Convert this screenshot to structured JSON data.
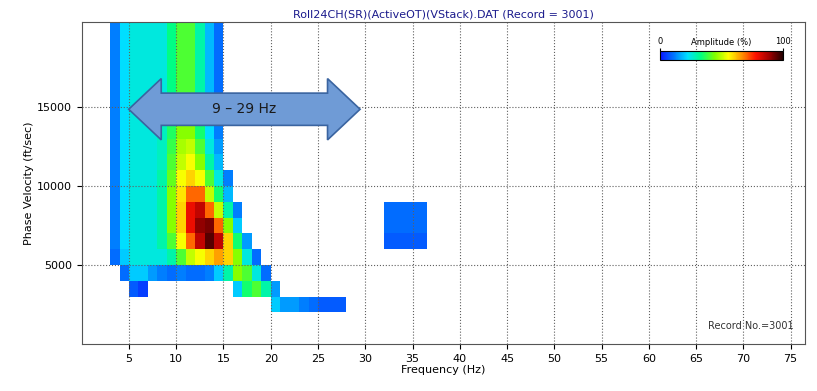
{
  "chart_data": {
    "type": "heatmap",
    "title": "Roll24CH(SR)(ActiveOT)(VStack).DAT (Record = 3001)",
    "x_label": "Frequency (Hz)",
    "y_label": "Phase Velocity (ft/sec)",
    "xlim": [
      0,
      76.5
    ],
    "ylim": [
      0,
      20400
    ],
    "xticks": [
      5,
      10,
      15,
      20,
      25,
      30,
      35,
      40,
      45,
      50,
      55,
      60,
      65,
      70,
      75
    ],
    "yticks": [
      5000,
      10000,
      15000
    ],
    "grid": true,
    "x_edges": [
      3,
      4,
      5,
      6,
      7,
      8,
      9,
      10,
      11,
      12,
      13,
      14,
      15,
      16,
      17,
      18,
      19,
      20,
      21,
      22,
      23,
      24,
      25,
      28,
      32,
      36.5
    ],
    "y_edges": [
      0,
      1000,
      2000,
      3000,
      4000,
      5000,
      6000,
      7000,
      8000,
      9000,
      10000,
      11000,
      12000,
      13000,
      14000,
      15000,
      16000,
      17000,
      18000,
      19000,
      20000,
      21000
    ],
    "cells": [
      [
        0,
        0,
        0,
        0,
        0,
        0,
        0,
        0,
        0,
        0,
        0,
        0,
        0,
        0,
        0,
        0,
        0,
        0,
        0,
        0,
        0,
        0,
        0,
        0,
        0
      ],
      [
        0,
        0,
        0,
        0,
        0,
        0,
        0,
        0,
        0,
        0,
        0,
        0,
        0,
        0,
        0,
        0,
        0,
        0,
        0,
        0,
        0,
        0,
        0,
        0,
        0
      ],
      [
        0,
        0,
        0,
        0,
        0,
        0,
        0,
        0,
        0,
        0,
        0,
        0,
        0,
        0,
        0,
        0,
        0,
        20,
        15,
        15,
        12,
        10,
        8,
        0,
        0
      ],
      [
        0,
        0,
        8,
        5,
        0,
        0,
        0,
        0,
        0,
        0,
        0,
        0,
        0,
        20,
        35,
        40,
        30,
        15,
        0,
        0,
        0,
        0,
        0,
        0,
        0
      ],
      [
        0,
        10,
        20,
        20,
        15,
        12,
        10,
        12,
        10,
        10,
        12,
        20,
        30,
        45,
        40,
        25,
        10,
        0,
        0,
        0,
        0,
        0,
        0,
        0,
        0
      ],
      [
        10,
        20,
        25,
        25,
        25,
        25,
        30,
        40,
        50,
        55,
        60,
        65,
        60,
        45,
        25,
        10,
        0,
        0,
        0,
        0,
        0,
        0,
        0,
        0,
        0
      ],
      [
        12,
        22,
        25,
        25,
        25,
        30,
        40,
        55,
        70,
        85,
        95,
        85,
        60,
        35,
        15,
        0,
        0,
        0,
        0,
        0,
        0,
        0,
        0,
        0,
        8
      ],
      [
        12,
        22,
        25,
        25,
        25,
        30,
        45,
        60,
        80,
        90,
        92,
        70,
        45,
        20,
        0,
        0,
        0,
        0,
        0,
        0,
        0,
        0,
        0,
        0,
        10
      ],
      [
        12,
        22,
        25,
        25,
        25,
        30,
        45,
        60,
        80,
        85,
        70,
        50,
        30,
        12,
        0,
        0,
        0,
        0,
        0,
        0,
        0,
        0,
        0,
        0,
        10
      ],
      [
        12,
        22,
        25,
        25,
        25,
        30,
        45,
        58,
        70,
        70,
        50,
        35,
        18,
        0,
        0,
        0,
        0,
        0,
        0,
        0,
        0,
        0,
        0,
        0,
        0
      ],
      [
        12,
        22,
        25,
        25,
        25,
        30,
        42,
        55,
        60,
        55,
        40,
        25,
        12,
        0,
        0,
        0,
        0,
        0,
        0,
        0,
        0,
        0,
        0,
        0,
        0
      ],
      [
        12,
        22,
        25,
        25,
        25,
        28,
        40,
        50,
        55,
        45,
        30,
        18,
        0,
        0,
        0,
        0,
        0,
        0,
        0,
        0,
        0,
        0,
        0,
        0,
        0
      ],
      [
        12,
        22,
        25,
        25,
        25,
        28,
        38,
        48,
        50,
        40,
        25,
        15,
        0,
        0,
        0,
        0,
        0,
        0,
        0,
        0,
        0,
        0,
        0,
        0,
        0
      ],
      [
        12,
        22,
        25,
        25,
        25,
        28,
        36,
        45,
        45,
        35,
        22,
        12,
        0,
        0,
        0,
        0,
        0,
        0,
        0,
        0,
        0,
        0,
        0,
        0,
        0
      ],
      [
        12,
        22,
        25,
        25,
        25,
        26,
        35,
        42,
        42,
        32,
        20,
        10,
        0,
        0,
        0,
        0,
        0,
        0,
        0,
        0,
        0,
        0,
        0,
        0,
        0
      ],
      [
        12,
        22,
        25,
        25,
        25,
        25,
        33,
        40,
        40,
        30,
        18,
        10,
        0,
        0,
        0,
        0,
        0,
        0,
        0,
        0,
        0,
        0,
        0,
        0,
        0
      ],
      [
        12,
        22,
        25,
        25,
        25,
        25,
        33,
        40,
        40,
        30,
        18,
        10,
        0,
        0,
        0,
        0,
        0,
        0,
        0,
        0,
        0,
        0,
        0,
        0,
        0
      ],
      [
        12,
        22,
        25,
        25,
        25,
        25,
        33,
        40,
        40,
        30,
        18,
        10,
        0,
        0,
        0,
        0,
        0,
        0,
        0,
        0,
        0,
        0,
        0,
        0,
        0
      ],
      [
        12,
        22,
        25,
        25,
        25,
        25,
        33,
        40,
        40,
        30,
        18,
        10,
        0,
        0,
        0,
        0,
        0,
        0,
        0,
        0,
        0,
        0,
        0,
        0,
        0
      ],
      [
        12,
        22,
        25,
        25,
        25,
        25,
        33,
        40,
        40,
        30,
        18,
        10,
        0,
        0,
        0,
        0,
        0,
        0,
        0,
        0,
        0,
        0,
        0,
        0,
        0
      ],
      [
        12,
        22,
        25,
        25,
        25,
        25,
        33,
        40,
        40,
        30,
        18,
        10,
        0,
        0,
        0,
        0,
        0,
        0,
        0,
        0,
        0,
        0,
        0,
        0,
        0
      ]
    ],
    "colorbar": {
      "label": "Amplitude (%)",
      "range": [
        0,
        100
      ],
      "ticks": [
        0,
        100
      ]
    },
    "annotations": [
      "9 – 29 Hz",
      "Record No.=3001"
    ]
  }
}
